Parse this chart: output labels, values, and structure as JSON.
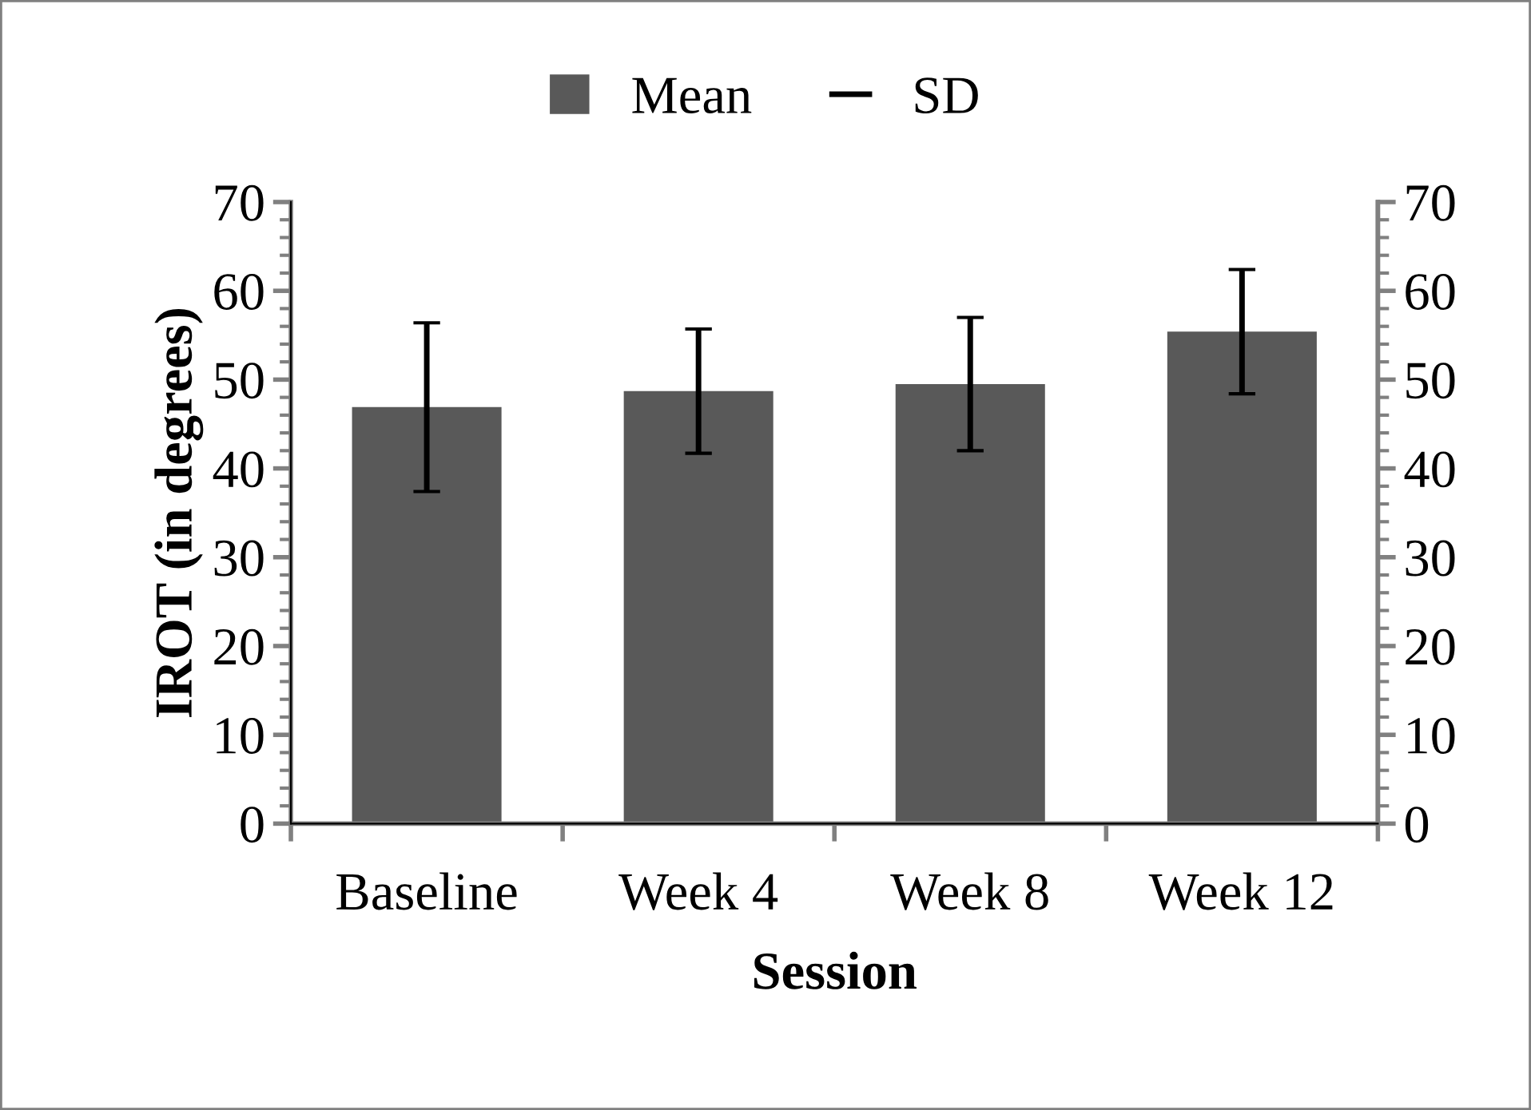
{
  "chart_data": {
    "type": "bar",
    "xlabel": "Session",
    "ylabel": "IROT (in degrees)",
    "categories": [
      "Baseline",
      "Week 4",
      "Week 8",
      "Week 12"
    ],
    "series": [
      {
        "name": "Mean",
        "color": "#595959",
        "values": [
          46.9,
          48.7,
          49.5,
          55.4
        ],
        "errors": [
          9.5,
          7,
          7.5,
          7
        ]
      }
    ],
    "annotations": [
      "SD"
    ],
    "ylim": [
      0,
      70
    ],
    "yticks": [
      0,
      10,
      20,
      30,
      40,
      50,
      60,
      70
    ],
    "y2lim": [
      0,
      70
    ],
    "y2ticks": [
      0,
      10,
      20,
      30,
      40,
      50,
      60,
      70
    ],
    "grid": false,
    "legend": "top"
  }
}
